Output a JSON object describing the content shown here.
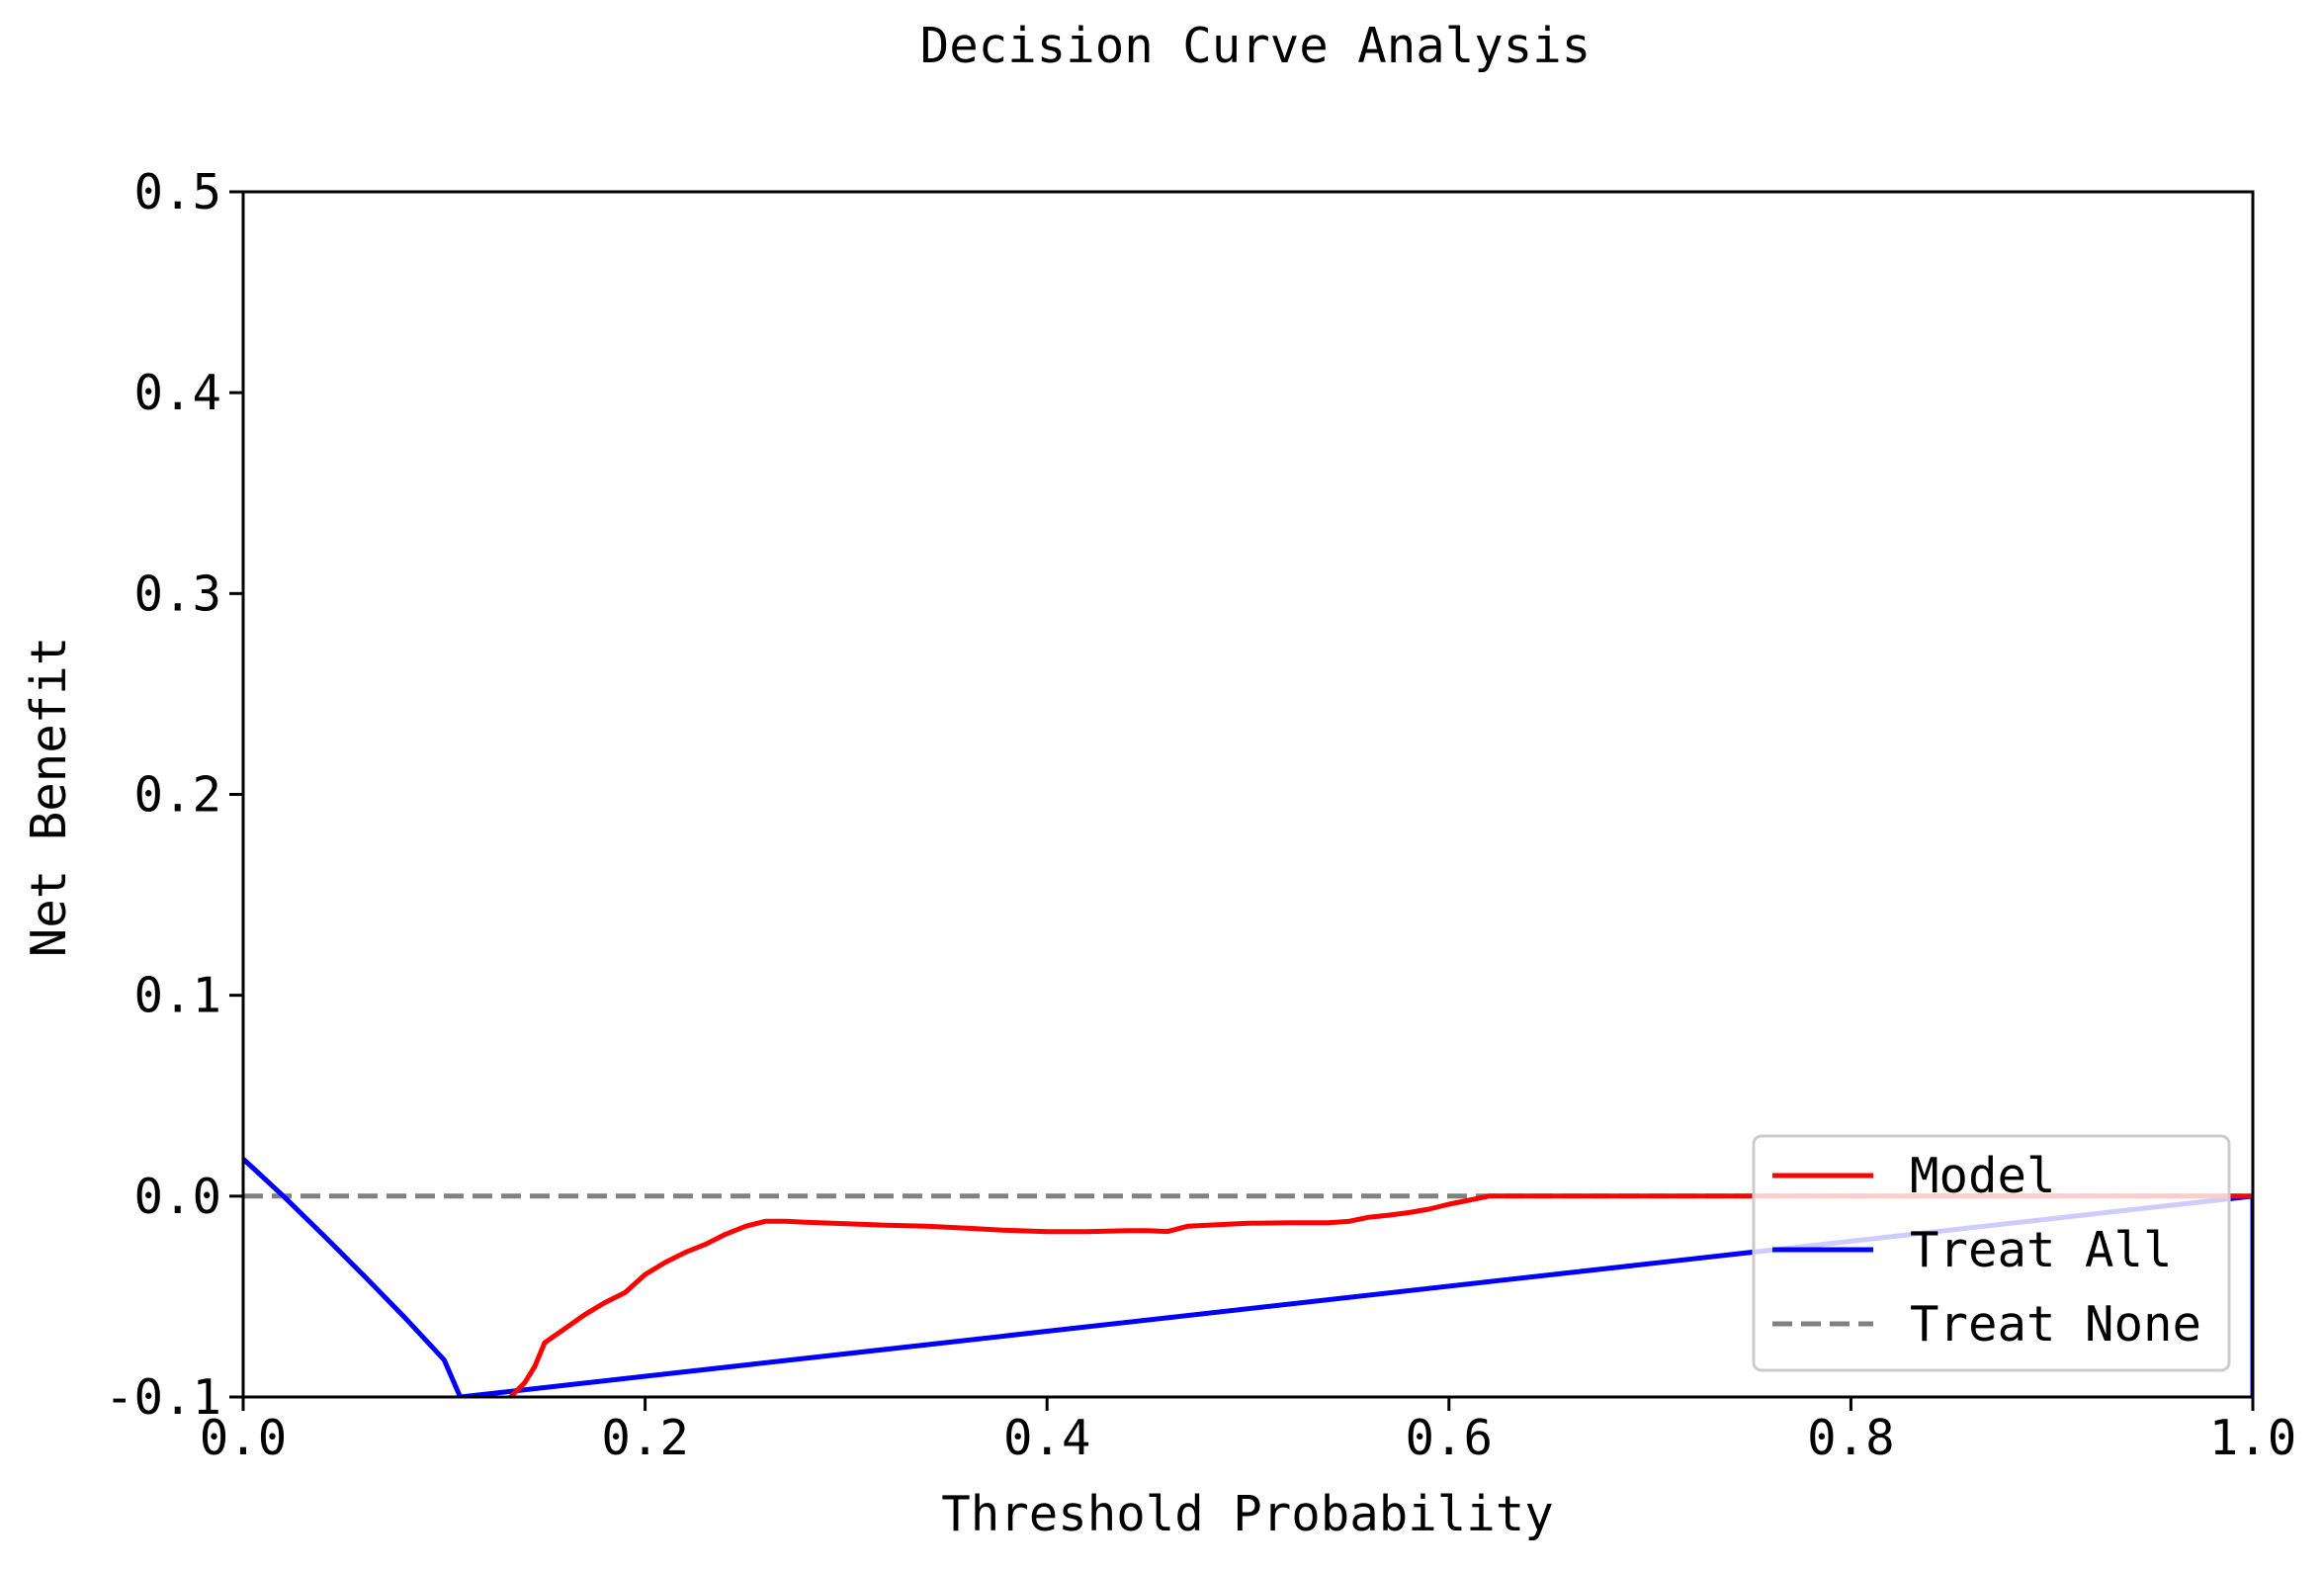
{
  "chart_data": {
    "type": "line",
    "title": "Decision Curve Analysis",
    "xlabel": "Threshold Probability",
    "ylabel": "Net Benefit",
    "xlim": [
      0.0,
      1.0
    ],
    "ylim": [
      -0.1,
      0.5
    ],
    "xticks": [
      0.0,
      0.2,
      0.4,
      0.6,
      0.8,
      1.0
    ],
    "xtick_labels": [
      "0.0",
      "0.2",
      "0.4",
      "0.6",
      "0.8",
      "1.0"
    ],
    "yticks": [
      -0.1,
      0.0,
      0.1,
      0.2,
      0.3,
      0.4,
      0.5
    ],
    "ytick_labels": [
      "-0.1",
      "0.0",
      "0.1",
      "0.2",
      "0.3",
      "0.4",
      "0.5"
    ],
    "grid": false,
    "legend_position": "bottom-right",
    "series": [
      {
        "name": "Model",
        "color": "#ff0000",
        "style": "solid",
        "x": [
          0.133,
          0.14,
          0.145,
          0.15,
          0.16,
          0.17,
          0.18,
          0.19,
          0.2,
          0.21,
          0.22,
          0.23,
          0.24,
          0.25,
          0.26,
          0.27,
          0.28,
          0.3,
          0.32,
          0.34,
          0.36,
          0.38,
          0.4,
          0.42,
          0.44,
          0.45,
          0.46,
          0.47,
          0.48,
          0.5,
          0.52,
          0.54,
          0.55,
          0.56,
          0.57,
          0.58,
          0.59,
          0.6,
          0.61,
          0.62,
          0.7,
          0.8,
          0.9,
          1.0
        ],
        "y": [
          -0.1,
          -0.093,
          -0.085,
          -0.073,
          -0.066,
          -0.059,
          -0.053,
          -0.048,
          -0.039,
          -0.033,
          -0.028,
          -0.024,
          -0.019,
          -0.015,
          -0.0125,
          -0.0125,
          -0.013,
          -0.0137,
          -0.0145,
          -0.015,
          -0.016,
          -0.017,
          -0.0177,
          -0.0177,
          -0.0172,
          -0.0172,
          -0.0176,
          -0.015,
          -0.0145,
          -0.0135,
          -0.0132,
          -0.0132,
          -0.0126,
          -0.0105,
          -0.0095,
          -0.0082,
          -0.0065,
          -0.004,
          -0.002,
          0.0,
          0.0,
          0.0,
          0.0,
          0.0
        ]
      },
      {
        "name": "Treat All",
        "color": "#0000ff",
        "style": "solid",
        "x": [
          0.0,
          0.02,
          0.04,
          0.06,
          0.08,
          0.1,
          0.108,
          1.0,
          1.0
        ],
        "y": [
          0.0185,
          0.0,
          -0.0195,
          -0.0395,
          -0.06,
          -0.0815,
          -0.1,
          0.0,
          -0.1
        ]
      },
      {
        "name": "Treat None",
        "color": "#808080",
        "style": "dashed",
        "x": [
          0.0,
          1.0
        ],
        "y": [
          0.0,
          0.0
        ]
      }
    ]
  }
}
